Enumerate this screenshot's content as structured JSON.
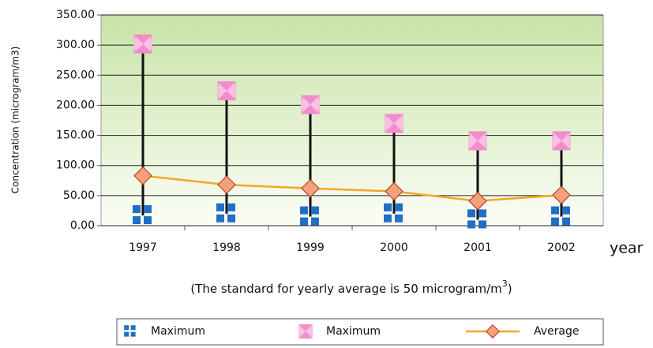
{
  "chart_data": {
    "type": "hilo-line",
    "y_label": "Concentration (microgram/m3)",
    "x_label": "year",
    "note": {
      "text": "(The standard for yearly average is 50 microgram/m",
      "superscript": "3",
      "end": ")"
    },
    "categories": [
      "1997",
      "1998",
      "1999",
      "2000",
      "2001",
      "2002"
    ],
    "series": [
      {
        "name": "Maximum",
        "color": "#1f6fc5",
        "marker": "squares",
        "values": [
          17,
          20,
          15,
          20,
          10,
          15
        ]
      },
      {
        "name": "Maximum",
        "color": "#f28ccc",
        "marker": "bowtie",
        "values": [
          302,
          224,
          201,
          170,
          141,
          141
        ]
      },
      {
        "name": "Average",
        "color": "#f5a623",
        "marker": "diamond",
        "line": true,
        "values": [
          83,
          68,
          62,
          57,
          41,
          51
        ]
      }
    ],
    "ylim": [
      0,
      350
    ],
    "yticks": [
      {
        "value": 0,
        "label": "0.00"
      },
      {
        "value": 50,
        "label": "50.00"
      },
      {
        "value": 100,
        "label": "100.00"
      },
      {
        "value": 150,
        "label": "150.00"
      },
      {
        "value": 200,
        "label": "200.00"
      },
      {
        "value": 250,
        "label": "250.00"
      },
      {
        "value": 300,
        "label": "300.00"
      },
      {
        "value": 350,
        "label": "350.00"
      }
    ],
    "grid": true,
    "legend": "bottom"
  }
}
